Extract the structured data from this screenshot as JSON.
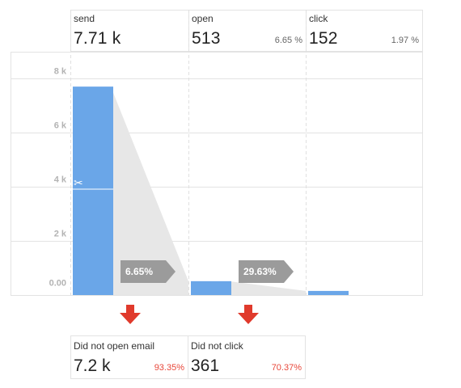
{
  "stages": [
    {
      "name": "send",
      "count_label": "7.71 k",
      "percent": ""
    },
    {
      "name": "open",
      "count_label": "513",
      "percent": "6.65 %"
    },
    {
      "name": "click",
      "count_label": "152",
      "percent": "1.97 %"
    }
  ],
  "conversion_rates": [
    "6.65%",
    "29.63%"
  ],
  "dropoffs": [
    {
      "label": "Did not open email",
      "count_label": "7.2 k",
      "percent": "93.35%"
    },
    {
      "label": "Did not click",
      "count_label": "361",
      "percent": "70.37%"
    }
  ],
  "colors": {
    "bar": "#6aa6e8",
    "funnel": "#e7e7e7",
    "rate_badge": "#9b9b9b",
    "dropoff_arrow": "#e03a2c",
    "dropoff_text": "#e8473a",
    "grid": "#e3e3e3"
  },
  "icons": {
    "split_marker": "scissors-icon",
    "dropoff_marker": "arrow-down-icon"
  },
  "chart_data": {
    "type": "bar",
    "categories": [
      "send",
      "open",
      "click"
    ],
    "values": [
      7710,
      513,
      152
    ],
    "ylim": [
      0,
      9000
    ],
    "ytick_values": [
      0,
      2000,
      4000,
      6000,
      8000
    ],
    "ytick_labels": [
      "0.00",
      "2 k",
      "4 k",
      "6 k",
      "8 k"
    ],
    "grid": true
  }
}
